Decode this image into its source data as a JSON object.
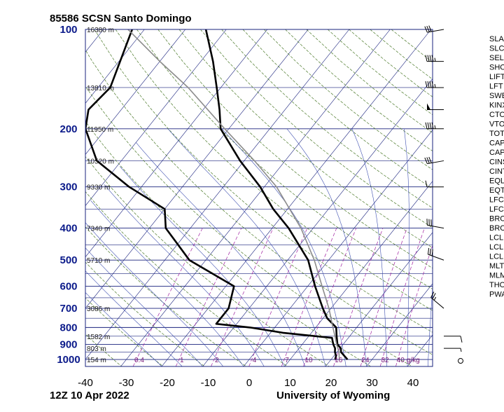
{
  "header": {
    "title": "85586 SCSN Santo Domingo"
  },
  "footer": {
    "time": "12Z 10 Apr 2022",
    "source": "University of Wyoming"
  },
  "colors": {
    "isobar": "#1a237e",
    "isotherm": "#1a237e",
    "dry_adiabat": "#4c7a2a",
    "moist_adiabat": "#3d4fb0",
    "mixing_ratio": "#a020a0",
    "temperature": "#000000",
    "dewpoint": "#000000",
    "parcel": "#8c8c8c"
  },
  "chart_data": {
    "type": "skew-t",
    "title": "85586 SCSN Santo Domingo",
    "xlabel": "",
    "ylabel": "",
    "pressure_levels": [
      100,
      200,
      300,
      400,
      500,
      600,
      700,
      800,
      900,
      1000
    ],
    "temperature_ticks": [
      -40,
      -30,
      -20,
      -10,
      0,
      10,
      20,
      30,
      40
    ],
    "xlim": [
      -40,
      45
    ],
    "ylim": [
      1050,
      100
    ],
    "height_labels": [
      {
        "p": 100,
        "label": "16380 m"
      },
      {
        "p": 150,
        "label": "13810 m"
      },
      {
        "p": 200,
        "label": "11950 m"
      },
      {
        "p": 250,
        "label": "10520 m"
      },
      {
        "p": 300,
        "label": "9330 m"
      },
      {
        "p": 400,
        "label": "7340 m"
      },
      {
        "p": 500,
        "label": "5710 m"
      },
      {
        "p": 700,
        "label": "3086 m"
      },
      {
        "p": 850,
        "label": "1582 m"
      },
      {
        "p": 925,
        "label": "803 m"
      },
      {
        "p": 1000,
        "label": "154 m"
      }
    ],
    "mixing_ratio_labels": [
      "0.4",
      "1",
      "2",
      "4",
      "7",
      "10",
      "16",
      "24",
      "32",
      "40",
      "g/kg"
    ],
    "index_labels": [
      "SLA",
      "SLC",
      "SEL",
      "SHO",
      "LIFT",
      "LFT",
      "SWE",
      "KINX",
      "CTO",
      "VTO",
      "TOT",
      "CAP",
      "CAP",
      "CINS",
      "CINT",
      "EQL",
      "EQT",
      "LFC",
      "LFC",
      "BRC",
      "BRC",
      "LCL",
      "LCL",
      "LCL",
      "MLT",
      "MLM",
      "THO",
      "PWA"
    ],
    "series": [
      {
        "key": "temperature",
        "values": [
          [
            1000,
            24.0
          ],
          [
            950,
            21.0
          ],
          [
            925,
            20.2
          ],
          [
            900,
            18.6
          ],
          [
            850,
            16.8
          ],
          [
            800,
            15.0
          ],
          [
            750,
            11.0
          ],
          [
            700,
            8.0
          ],
          [
            600,
            1.8
          ],
          [
            500,
            -5.0
          ],
          [
            400,
            -16.0
          ],
          [
            350,
            -23.5
          ],
          [
            300,
            -31.0
          ],
          [
            250,
            -41.0
          ],
          [
            200,
            -52.0
          ],
          [
            175,
            -56.0
          ],
          [
            150,
            -61.0
          ],
          [
            125,
            -67.0
          ],
          [
            100,
            -75.0
          ]
        ]
      },
      {
        "key": "dewpoint",
        "values": [
          [
            1000,
            21.0
          ],
          [
            975,
            20.5
          ],
          [
            950,
            19.5
          ],
          [
            925,
            18.8
          ],
          [
            900,
            17.6
          ],
          [
            880,
            16.8
          ],
          [
            860,
            16.0
          ],
          [
            830,
            3.0
          ],
          [
            800,
            -6.0
          ],
          [
            780,
            -15.0
          ],
          [
            700,
            -15.0
          ],
          [
            600,
            -18.0
          ],
          [
            500,
            -34.0
          ],
          [
            400,
            -46.0
          ],
          [
            350,
            -50.0
          ],
          [
            300,
            -63.0
          ],
          [
            250,
            -76.0
          ],
          [
            200,
            -85.0
          ],
          [
            175,
            -88.0
          ],
          [
            150,
            -87.0
          ],
          [
            100,
            -93.0
          ]
        ]
      },
      {
        "key": "parcel",
        "values": [
          [
            1000,
            22.0
          ],
          [
            950,
            20.5
          ],
          [
            900,
            18.4
          ],
          [
            850,
            16.4
          ],
          [
            800,
            14.2
          ],
          [
            700,
            9.5
          ],
          [
            600,
            3.5
          ],
          [
            500,
            -3.5
          ],
          [
            400,
            -13.0
          ],
          [
            300,
            -27.0
          ],
          [
            250,
            -37.5
          ],
          [
            200,
            -51.0
          ],
          [
            150,
            -68.0
          ],
          [
            125,
            -80.0
          ],
          [
            100,
            -94.0
          ]
        ]
      }
    ],
    "wind_barbs": [
      {
        "p": 1000,
        "dir": "calm"
      },
      {
        "p": 925,
        "dir": 90,
        "speed": 5
      },
      {
        "p": 850,
        "dir": 90,
        "speed": 10
      },
      {
        "p": 700,
        "dir": 310,
        "speed": 25
      },
      {
        "p": 500,
        "dir": 290,
        "speed": 30
      },
      {
        "p": 400,
        "dir": 280,
        "speed": 30
      },
      {
        "p": 300,
        "dir": 270,
        "speed": 10
      },
      {
        "p": 250,
        "dir": 260,
        "speed": 30
      },
      {
        "p": 200,
        "dir": 270,
        "speed": 45
      },
      {
        "p": 175,
        "dir": 270,
        "speed": 50
      },
      {
        "p": 150,
        "dir": 270,
        "speed": 45
      },
      {
        "p": 125,
        "dir": 270,
        "speed": 45
      },
      {
        "p": 100,
        "dir": 260,
        "speed": 30
      }
    ],
    "grid": true
  }
}
